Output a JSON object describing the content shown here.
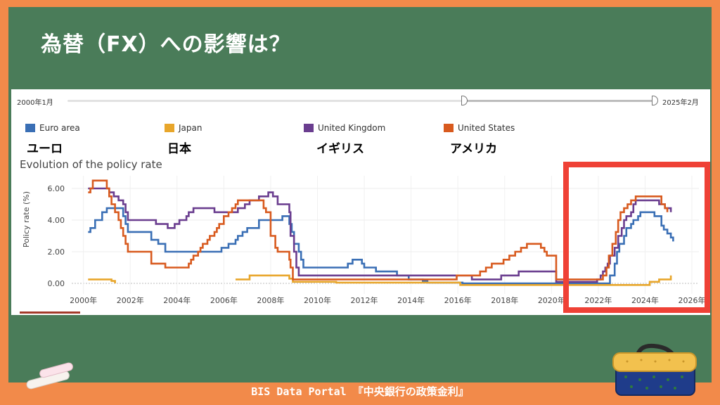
{
  "slide": {
    "title": "為替（FX）への影響は？",
    "footer": "BIS  Data Portal 『中央銀行の政策金利』"
  },
  "slider": {
    "start_label": "2000年1月",
    "end_label": "2025年2月"
  },
  "legend_jp": [
    "ユーロ",
    "日本",
    "イギリス",
    "アメリカ"
  ],
  "colors": {
    "euro": "#3a6fb5",
    "japan": "#e8a62b",
    "uk": "#6a3d8f",
    "us": "#d85a1e",
    "highlight": "#ef4136",
    "board": "#4a7c59",
    "frame": "#f28a4a"
  },
  "chart_data": {
    "type": "line",
    "title": "Evolution of the policy rate",
    "xlabel": "",
    "ylabel": "Policy rate (%)",
    "xlim": [
      1999.5,
      2026.3
    ],
    "ylim": [
      -0.4,
      6.8
    ],
    "x_ticks": [
      2000,
      2002,
      2004,
      2006,
      2008,
      2010,
      2012,
      2014,
      2016,
      2018,
      2020,
      2022,
      2024,
      2026
    ],
    "x_tick_labels": [
      "2000年",
      "2002年",
      "2004年",
      "2006年",
      "2008年",
      "2010年",
      "2012年",
      "2014年",
      "2016年",
      "2018年",
      "2020年",
      "2022年",
      "2024年",
      "2026年"
    ],
    "y_ticks": [
      0,
      2,
      4,
      6
    ],
    "y_tick_labels": [
      "0.00",
      "2.00",
      "4.00",
      "6.00"
    ],
    "grid": true,
    "legend_position": "top",
    "series": [
      {
        "name": "Euro area",
        "color": "#3a6fb5",
        "points": [
          [
            2000.2,
            3.25
          ],
          [
            2000.3,
            3.5
          ],
          [
            2000.5,
            4.0
          ],
          [
            2000.8,
            4.5
          ],
          [
            2001.0,
            4.75
          ],
          [
            2001.7,
            4.25
          ],
          [
            2001.8,
            3.75
          ],
          [
            2001.9,
            3.25
          ],
          [
            2002.9,
            2.75
          ],
          [
            2003.2,
            2.5
          ],
          [
            2003.5,
            2.0
          ],
          [
            2005.9,
            2.25
          ],
          [
            2006.2,
            2.5
          ],
          [
            2006.5,
            2.75
          ],
          [
            2006.6,
            3.0
          ],
          [
            2006.8,
            3.25
          ],
          [
            2007.0,
            3.5
          ],
          [
            2007.5,
            4.0
          ],
          [
            2008.5,
            4.25
          ],
          [
            2008.8,
            3.75
          ],
          [
            2008.9,
            3.25
          ],
          [
            2009.0,
            2.5
          ],
          [
            2009.2,
            2.0
          ],
          [
            2009.3,
            1.5
          ],
          [
            2009.4,
            1.0
          ],
          [
            2011.3,
            1.25
          ],
          [
            2011.5,
            1.5
          ],
          [
            2011.9,
            1.25
          ],
          [
            2012.0,
            1.0
          ],
          [
            2012.5,
            0.75
          ],
          [
            2013.4,
            0.5
          ],
          [
            2013.9,
            0.25
          ],
          [
            2014.5,
            0.15
          ],
          [
            2014.7,
            0.05
          ],
          [
            2016.2,
            0.0
          ],
          [
            2022.5,
            0.5
          ],
          [
            2022.7,
            1.25
          ],
          [
            2022.8,
            2.0
          ],
          [
            2022.9,
            2.5
          ],
          [
            2023.1,
            3.0
          ],
          [
            2023.2,
            3.5
          ],
          [
            2023.4,
            3.75
          ],
          [
            2023.5,
            4.0
          ],
          [
            2023.7,
            4.25
          ],
          [
            2023.8,
            4.5
          ],
          [
            2024.4,
            4.25
          ],
          [
            2024.7,
            3.65
          ],
          [
            2024.8,
            3.4
          ],
          [
            2024.95,
            3.15
          ],
          [
            2025.1,
            2.9
          ],
          [
            2025.2,
            2.65
          ]
        ]
      },
      {
        "name": "Japan",
        "color": "#e8a62b",
        "points": [
          [
            2000.2,
            0.25
          ],
          [
            2001.2,
            0.15
          ],
          [
            2001.35,
            0.0
          ],
          [
            2001.4,
            null
          ],
          [
            2006.5,
            0.25
          ],
          [
            2007.1,
            0.5
          ],
          [
            2008.8,
            0.3
          ],
          [
            2008.95,
            0.1
          ],
          [
            2010.8,
            0.05
          ],
          [
            2016.1,
            -0.1
          ],
          [
            2024.2,
            0.1
          ],
          [
            2024.6,
            0.25
          ],
          [
            2025.1,
            0.5
          ]
        ]
      },
      {
        "name": "United Kingdom",
        "color": "#6a3d8f",
        "points": [
          [
            2000.2,
            6.0
          ],
          [
            2001.1,
            5.75
          ],
          [
            2001.3,
            5.5
          ],
          [
            2001.5,
            5.25
          ],
          [
            2001.7,
            5.0
          ],
          [
            2001.8,
            4.5
          ],
          [
            2001.9,
            4.0
          ],
          [
            2003.1,
            3.75
          ],
          [
            2003.6,
            3.5
          ],
          [
            2003.9,
            3.75
          ],
          [
            2004.1,
            4.0
          ],
          [
            2004.4,
            4.25
          ],
          [
            2004.5,
            4.5
          ],
          [
            2004.7,
            4.75
          ],
          [
            2005.6,
            4.5
          ],
          [
            2006.6,
            4.75
          ],
          [
            2006.9,
            5.0
          ],
          [
            2007.1,
            5.25
          ],
          [
            2007.5,
            5.5
          ],
          [
            2007.9,
            5.75
          ],
          [
            2008.1,
            5.5
          ],
          [
            2008.3,
            5.0
          ],
          [
            2008.8,
            4.5
          ],
          [
            2008.85,
            3.0
          ],
          [
            2009.0,
            2.0
          ],
          [
            2009.1,
            1.0
          ],
          [
            2009.2,
            0.5
          ],
          [
            2016.6,
            0.25
          ],
          [
            2017.85,
            0.5
          ],
          [
            2018.6,
            0.75
          ],
          [
            2020.2,
            0.1
          ],
          [
            2021.95,
            0.25
          ],
          [
            2022.1,
            0.5
          ],
          [
            2022.2,
            0.75
          ],
          [
            2022.3,
            1.0
          ],
          [
            2022.4,
            1.25
          ],
          [
            2022.5,
            1.75
          ],
          [
            2022.7,
            2.25
          ],
          [
            2022.85,
            3.0
          ],
          [
            2023.0,
            3.5
          ],
          [
            2023.1,
            4.0
          ],
          [
            2023.2,
            4.25
          ],
          [
            2023.4,
            4.5
          ],
          [
            2023.5,
            5.0
          ],
          [
            2023.6,
            5.25
          ],
          [
            2024.6,
            5.0
          ],
          [
            2024.85,
            4.75
          ],
          [
            2025.1,
            4.5
          ]
        ]
      },
      {
        "name": "United States",
        "color": "#d85a1e",
        "points": [
          [
            2000.2,
            5.75
          ],
          [
            2000.3,
            6.0
          ],
          [
            2000.4,
            6.5
          ],
          [
            2001.0,
            6.0
          ],
          [
            2001.1,
            5.5
          ],
          [
            2001.2,
            5.0
          ],
          [
            2001.35,
            4.5
          ],
          [
            2001.5,
            4.0
          ],
          [
            2001.6,
            3.5
          ],
          [
            2001.7,
            3.0
          ],
          [
            2001.8,
            2.5
          ],
          [
            2001.9,
            2.0
          ],
          [
            2002.9,
            1.25
          ],
          [
            2003.5,
            1.0
          ],
          [
            2004.5,
            1.25
          ],
          [
            2004.6,
            1.5
          ],
          [
            2004.7,
            1.75
          ],
          [
            2004.9,
            2.0
          ],
          [
            2005.0,
            2.25
          ],
          [
            2005.1,
            2.5
          ],
          [
            2005.3,
            2.75
          ],
          [
            2005.4,
            3.0
          ],
          [
            2005.6,
            3.25
          ],
          [
            2005.7,
            3.5
          ],
          [
            2005.8,
            3.75
          ],
          [
            2006.0,
            4.25
          ],
          [
            2006.2,
            4.5
          ],
          [
            2006.35,
            4.75
          ],
          [
            2006.5,
            5.0
          ],
          [
            2006.6,
            5.25
          ],
          [
            2007.7,
            4.75
          ],
          [
            2007.8,
            4.5
          ],
          [
            2008.0,
            3.0
          ],
          [
            2008.2,
            2.25
          ],
          [
            2008.3,
            2.0
          ],
          [
            2008.8,
            1.5
          ],
          [
            2008.85,
            1.0
          ],
          [
            2008.95,
            0.25
          ],
          [
            2015.95,
            0.5
          ],
          [
            2016.95,
            0.75
          ],
          [
            2017.2,
            1.0
          ],
          [
            2017.45,
            1.25
          ],
          [
            2017.95,
            1.5
          ],
          [
            2018.2,
            1.75
          ],
          [
            2018.45,
            2.0
          ],
          [
            2018.7,
            2.25
          ],
          [
            2018.95,
            2.5
          ],
          [
            2019.55,
            2.25
          ],
          [
            2019.7,
            2.0
          ],
          [
            2019.8,
            1.75
          ],
          [
            2020.2,
            0.25
          ],
          [
            2022.2,
            0.5
          ],
          [
            2022.35,
            1.0
          ],
          [
            2022.45,
            1.75
          ],
          [
            2022.6,
            2.5
          ],
          [
            2022.75,
            3.25
          ],
          [
            2022.85,
            4.0
          ],
          [
            2022.95,
            4.5
          ],
          [
            2023.1,
            4.75
          ],
          [
            2023.25,
            5.0
          ],
          [
            2023.4,
            5.25
          ],
          [
            2023.6,
            5.5
          ],
          [
            2024.7,
            5.0
          ],
          [
            2024.85,
            4.75
          ],
          [
            2024.95,
            4.5
          ]
        ]
      }
    ]
  }
}
